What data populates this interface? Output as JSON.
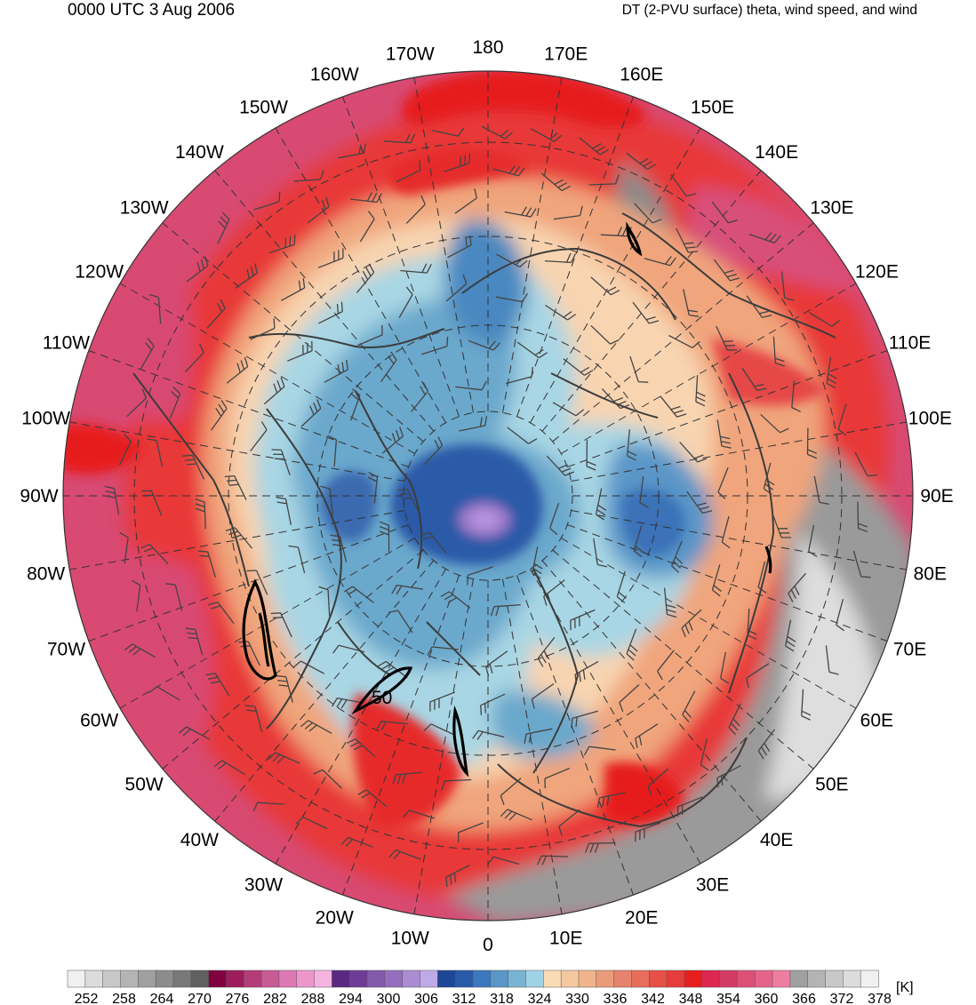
{
  "header": {
    "valid_time": "0000 UTC 3 Aug 2006",
    "product": "DT (2-PVU surface) theta, wind speed, and wind"
  },
  "map": {
    "projection": "north polar stereographic",
    "longitude_labels": [
      {
        "text": "180",
        "lon": 180
      },
      {
        "text": "170E",
        "lon": 170
      },
      {
        "text": "160E",
        "lon": 160
      },
      {
        "text": "150E",
        "lon": 150
      },
      {
        "text": "140E",
        "lon": 140
      },
      {
        "text": "130E",
        "lon": 130
      },
      {
        "text": "120E",
        "lon": 120
      },
      {
        "text": "110E",
        "lon": 110
      },
      {
        "text": "100E",
        "lon": 100
      },
      {
        "text": "90E",
        "lon": 90
      },
      {
        "text": "80E",
        "lon": 80
      },
      {
        "text": "70E",
        "lon": 70
      },
      {
        "text": "60E",
        "lon": 60
      },
      {
        "text": "50E",
        "lon": 50
      },
      {
        "text": "40E",
        "lon": 40
      },
      {
        "text": "30E",
        "lon": 30
      },
      {
        "text": "20E",
        "lon": 20
      },
      {
        "text": "10E",
        "lon": 10
      },
      {
        "text": "0",
        "lon": 0
      },
      {
        "text": "10W",
        "lon": -10
      },
      {
        "text": "20W",
        "lon": -20
      },
      {
        "text": "30W",
        "lon": -30
      },
      {
        "text": "40W",
        "lon": -40
      },
      {
        "text": "50W",
        "lon": -50
      },
      {
        "text": "60W",
        "lon": -60
      },
      {
        "text": "70W",
        "lon": -70
      },
      {
        "text": "80W",
        "lon": -80
      },
      {
        "text": "90W",
        "lon": -90
      },
      {
        "text": "100W",
        "lon": -100
      },
      {
        "text": "110W",
        "lon": -110
      },
      {
        "text": "120W",
        "lon": -120
      },
      {
        "text": "130W",
        "lon": -130
      },
      {
        "text": "140W",
        "lon": -140
      },
      {
        "text": "150W",
        "lon": -150
      },
      {
        "text": "160W",
        "lon": -160
      },
      {
        "text": "170W",
        "lon": -170
      }
    ],
    "wind_speed_contour_label": "50"
  },
  "colorbar": {
    "unit": "[K]",
    "tick_labels": [
      "252",
      "258",
      "264",
      "270",
      "276",
      "282",
      "288",
      "294",
      "300",
      "306",
      "312",
      "318",
      "324",
      "330",
      "336",
      "342",
      "348",
      "354",
      "360",
      "366",
      "372",
      "378"
    ],
    "colors": [
      "#f0f0f0",
      "#dcdcdc",
      "#c8c8c8",
      "#b4b4b4",
      "#a0a0a0",
      "#8c8c8c",
      "#787878",
      "#606060",
      "#800040",
      "#9c1c5c",
      "#b43c78",
      "#c85a96",
      "#dc78b4",
      "#ee96cc",
      "#f5b4e0",
      "#5a2882",
      "#6e3c96",
      "#825aaa",
      "#966ebe",
      "#aa8cd2",
      "#beaae6",
      "#1e4696",
      "#285aaa",
      "#3c78be",
      "#5a96c8",
      "#78b4d2",
      "#a0d2e6",
      "#fadcb4",
      "#f5c8a0",
      "#f0b48c",
      "#eb9b78",
      "#e6826e",
      "#e66e5a",
      "#e65046",
      "#e63c3c",
      "#e61e1e",
      "#dc2850",
      "#d23c64",
      "#dc5078",
      "#e6648c",
      "#ee7ea0",
      "#a0a0a0",
      "#b4b4b4",
      "#c8c8c8",
      "#dcdcdc",
      "#f0f0f0"
    ]
  }
}
